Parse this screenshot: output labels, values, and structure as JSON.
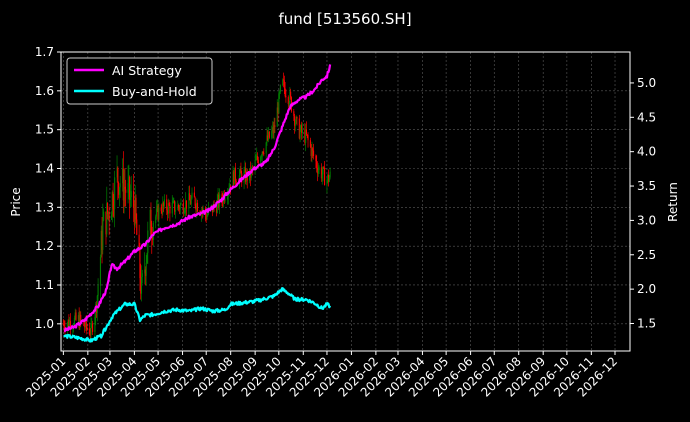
{
  "chart_data": {
    "type": "line",
    "title": "fund [513560.SH]",
    "ylabel": "Price",
    "ylabel_right": "Return",
    "ylim": [
      0.93,
      1.7
    ],
    "ylim_right": [
      1.1,
      5.45
    ],
    "y_ticks": [
      "1.0",
      "1.1",
      "1.2",
      "1.3",
      "1.4",
      "1.5",
      "1.6",
      "1.7"
    ],
    "y_ticks_right": [
      "1.5",
      "2.0",
      "2.5",
      "3.0",
      "3.5",
      "4.0",
      "4.5",
      "5.0"
    ],
    "x_range": [
      "2024-12-29",
      "2026-12-20"
    ],
    "x_ticks": [
      "2025-01",
      "2025-02",
      "2025-03",
      "2025-04",
      "2025-05",
      "2025-06",
      "2025-07",
      "2025-08",
      "2025-09",
      "2025-10",
      "2025-11",
      "2025-12",
      "2026-01",
      "2026-02",
      "2026-03",
      "2026-04",
      "2026-05",
      "2026-06",
      "2026-07",
      "2026-08",
      "2026-09",
      "2026-10",
      "2026-11",
      "2026-12"
    ],
    "grid": true,
    "legend_position": "top-left",
    "series": [
      {
        "name": "AI Strategy",
        "axis": "right",
        "color": "#ff00ff",
        "points": [
          [
            "2025-01-02",
            1.4
          ],
          [
            "2025-01-15",
            1.45
          ],
          [
            "2025-01-28",
            1.55
          ],
          [
            "2025-02-14",
            1.75
          ],
          [
            "2025-02-25",
            2.0
          ],
          [
            "2025-03-03",
            2.35
          ],
          [
            "2025-03-10",
            2.3
          ],
          [
            "2025-03-20",
            2.4
          ],
          [
            "2025-04-01",
            2.55
          ],
          [
            "2025-04-15",
            2.65
          ],
          [
            "2025-04-25",
            2.8
          ],
          [
            "2025-05-10",
            2.9
          ],
          [
            "2025-05-25",
            2.95
          ],
          [
            "2025-06-10",
            3.05
          ],
          [
            "2025-06-25",
            3.1
          ],
          [
            "2025-07-05",
            3.15
          ],
          [
            "2025-07-20",
            3.3
          ],
          [
            "2025-08-01",
            3.45
          ],
          [
            "2025-08-15",
            3.6
          ],
          [
            "2025-08-30",
            3.75
          ],
          [
            "2025-09-15",
            3.85
          ],
          [
            "2025-09-25",
            4.05
          ],
          [
            "2025-10-05",
            4.35
          ],
          [
            "2025-10-15",
            4.65
          ],
          [
            "2025-10-25",
            4.75
          ],
          [
            "2025-11-05",
            4.8
          ],
          [
            "2025-11-15",
            4.9
          ],
          [
            "2025-11-25",
            5.05
          ],
          [
            "2025-12-01",
            5.1
          ],
          [
            "2025-12-05",
            5.25
          ]
        ]
      },
      {
        "name": "Buy-and-Hold",
        "axis": "right",
        "color": "#00ffff",
        "points": [
          [
            "2025-01-02",
            1.32
          ],
          [
            "2025-01-15",
            1.3
          ],
          [
            "2025-01-25",
            1.28
          ],
          [
            "2025-02-05",
            1.25
          ],
          [
            "2025-02-18",
            1.32
          ],
          [
            "2025-03-05",
            1.62
          ],
          [
            "2025-03-20",
            1.78
          ],
          [
            "2025-04-01",
            1.78
          ],
          [
            "2025-04-08",
            1.55
          ],
          [
            "2025-04-15",
            1.62
          ],
          [
            "2025-04-25",
            1.63
          ],
          [
            "2025-05-10",
            1.68
          ],
          [
            "2025-05-25",
            1.7
          ],
          [
            "2025-06-10",
            1.68
          ],
          [
            "2025-06-25",
            1.72
          ],
          [
            "2025-07-10",
            1.68
          ],
          [
            "2025-07-25",
            1.7
          ],
          [
            "2025-08-01",
            1.78
          ],
          [
            "2025-08-15",
            1.8
          ],
          [
            "2025-08-30",
            1.82
          ],
          [
            "2025-09-10",
            1.85
          ],
          [
            "2025-09-25",
            1.9
          ],
          [
            "2025-10-05",
            2.0
          ],
          [
            "2025-10-12",
            1.95
          ],
          [
            "2025-10-22",
            1.85
          ],
          [
            "2025-11-05",
            1.85
          ],
          [
            "2025-11-15",
            1.8
          ],
          [
            "2025-11-25",
            1.72
          ],
          [
            "2025-12-01",
            1.78
          ],
          [
            "2025-12-05",
            1.75
          ]
        ]
      }
    ],
    "candlestick": {
      "axis": "left",
      "up_color": "#008000",
      "down_color": "#ff0000",
      "close_path": [
        [
          "2025-01-01",
          1.0
        ],
        [
          "2025-01-20",
          1.01
        ],
        [
          "2025-02-05",
          0.98
        ],
        [
          "2025-02-12",
          1.05
        ],
        [
          "2025-02-20",
          1.25
        ],
        [
          "2025-03-01",
          1.3
        ],
        [
          "2025-03-10",
          1.38
        ],
        [
          "2025-03-20",
          1.35
        ],
        [
          "2025-04-01",
          1.3
        ],
        [
          "2025-04-10",
          1.08
        ],
        [
          "2025-04-20",
          1.25
        ],
        [
          "2025-05-05",
          1.3
        ],
        [
          "2025-05-25",
          1.3
        ],
        [
          "2025-06-15",
          1.32
        ],
        [
          "2025-07-01",
          1.28
        ],
        [
          "2025-07-20",
          1.32
        ],
        [
          "2025-08-05",
          1.38
        ],
        [
          "2025-08-25",
          1.38
        ],
        [
          "2025-09-10",
          1.45
        ],
        [
          "2025-09-25",
          1.5
        ],
        [
          "2025-10-05",
          1.62
        ],
        [
          "2025-10-15",
          1.58
        ],
        [
          "2025-10-25",
          1.5
        ],
        [
          "2025-11-05",
          1.48
        ],
        [
          "2025-11-20",
          1.4
        ],
        [
          "2025-12-01",
          1.37
        ],
        [
          "2025-12-05",
          1.38
        ]
      ]
    }
  }
}
